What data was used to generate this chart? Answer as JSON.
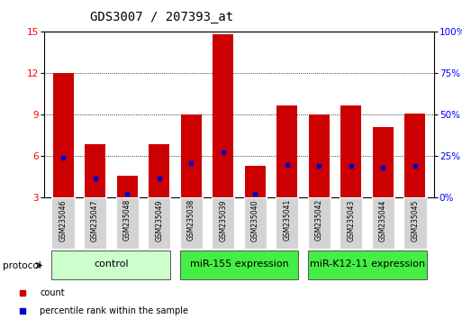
{
  "title": "GDS3007 / 207393_at",
  "samples": [
    "GSM235046",
    "GSM235047",
    "GSM235048",
    "GSM235049",
    "GSM235038",
    "GSM235039",
    "GSM235040",
    "GSM235041",
    "GSM235042",
    "GSM235043",
    "GSM235044",
    "GSM235045"
  ],
  "count_values": [
    12.0,
    6.9,
    4.6,
    6.9,
    9.0,
    14.8,
    5.3,
    9.7,
    9.0,
    9.7,
    8.1,
    9.1
  ],
  "percentile_values": [
    5.9,
    4.4,
    3.3,
    4.4,
    5.5,
    6.3,
    3.3,
    5.4,
    5.3,
    5.3,
    5.2,
    5.3
  ],
  "ylim": [
    3,
    15
  ],
  "yticks": [
    3,
    6,
    9,
    12,
    15
  ],
  "y2lim": [
    0,
    100
  ],
  "y2ticks": [
    0,
    25,
    50,
    75,
    100
  ],
  "y2labels": [
    "0%",
    "25%",
    "50%",
    "75%",
    "100%"
  ],
  "bar_color": "#cc0000",
  "percentile_color": "#0000cc",
  "bar_width": 0.65,
  "group_spans": [
    {
      "start": 0,
      "end": 3,
      "label": "control",
      "facecolor": "#ccffcc",
      "edgecolor": "#555555"
    },
    {
      "start": 4,
      "end": 7,
      "label": "miR-155 expression",
      "facecolor": "#44ee44",
      "edgecolor": "#555555"
    },
    {
      "start": 8,
      "end": 11,
      "label": "miR-K12-11 expression",
      "facecolor": "#44ee44",
      "edgecolor": "#555555"
    }
  ],
  "protocol_label": "protocol",
  "legend_count": "count",
  "legend_percentile": "percentile rank within the sample",
  "background_color": "#ffffff",
  "title_fontsize": 10,
  "tick_fontsize": 7.5,
  "sample_fontsize": 5.5,
  "group_fontsize": 8,
  "legend_fontsize": 7
}
